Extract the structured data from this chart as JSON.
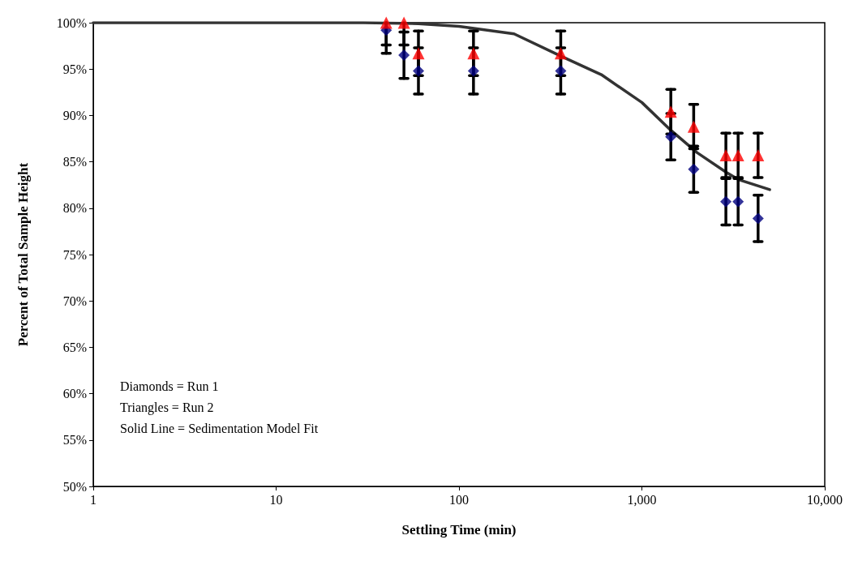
{
  "chart_data": {
    "type": "scatter",
    "xlabel": "Settling Time (min)",
    "ylabel": "Percent of Total Sample Height",
    "log": "x",
    "xlim": [
      1,
      10000
    ],
    "xticks": [
      1,
      10,
      100,
      {
        "value": 1000,
        "label": "1,000"
      },
      {
        "value": 10000,
        "label": "10,000"
      }
    ],
    "ylim": [
      50,
      100
    ],
    "yticks": [
      {
        "value": 50,
        "label": "50%"
      },
      {
        "value": 55,
        "label": "55%"
      },
      {
        "value": 60,
        "label": "60%"
      },
      {
        "value": 65,
        "label": "65%"
      },
      {
        "value": 70,
        "label": "70%"
      },
      {
        "value": 75,
        "label": "75%"
      },
      {
        "value": 80,
        "label": "80%"
      },
      {
        "value": 85,
        "label": "85%"
      },
      {
        "value": 90,
        "label": "90%"
      },
      {
        "value": 95,
        "label": "95%"
      },
      {
        "value": 100,
        "label": "100%"
      }
    ],
    "grid": false,
    "series": [
      {
        "type": "line",
        "color": "#333333",
        "marker": "none",
        "line_style": "solid",
        "x": [
          1,
          30,
          60,
          100,
          200,
          360,
          600,
          1000,
          1440,
          2000,
          2880,
          3360,
          5000
        ],
        "values": [
          100,
          100,
          99.9,
          99.6,
          98.8,
          96.4,
          94.4,
          91.4,
          88.4,
          86.0,
          83.9,
          83.1,
          82.0
        ]
      },
      {
        "color": "#000080",
        "marker": "diamond",
        "x": [
          40,
          50,
          60,
          120,
          360,
          1440,
          1920,
          2880,
          3360,
          4320
        ],
        "values": [
          99.2,
          96.5,
          94.8,
          94.8,
          94.8,
          87.7,
          84.2,
          80.7,
          80.7,
          78.9
        ],
        "errors": [
          [
            96.7,
            100
          ],
          2.5,
          2.5,
          2.5,
          2.5,
          2.5,
          2.5,
          2.5,
          2.5,
          2.5
        ]
      },
      {
        "color": "#ff0000",
        "marker": "triangle",
        "x": [
          40,
          50,
          60,
          120,
          360,
          1440,
          1920,
          2880,
          3360,
          4320
        ],
        "values": [
          100,
          100,
          96.7,
          96.7,
          96.7,
          90.4,
          88.8,
          85.7,
          85.7,
          85.7
        ],
        "errors": [
          [
            97.6,
            100
          ],
          [
            97.6,
            100
          ],
          2.4,
          2.4,
          2.4,
          2.4,
          2.4,
          2.4,
          2.4,
          2.4
        ]
      }
    ],
    "annotations": [
      "Diamonds = Run 1",
      "Triangles = Run 2",
      "Solid Line = Sedimentation Model Fit"
    ]
  }
}
